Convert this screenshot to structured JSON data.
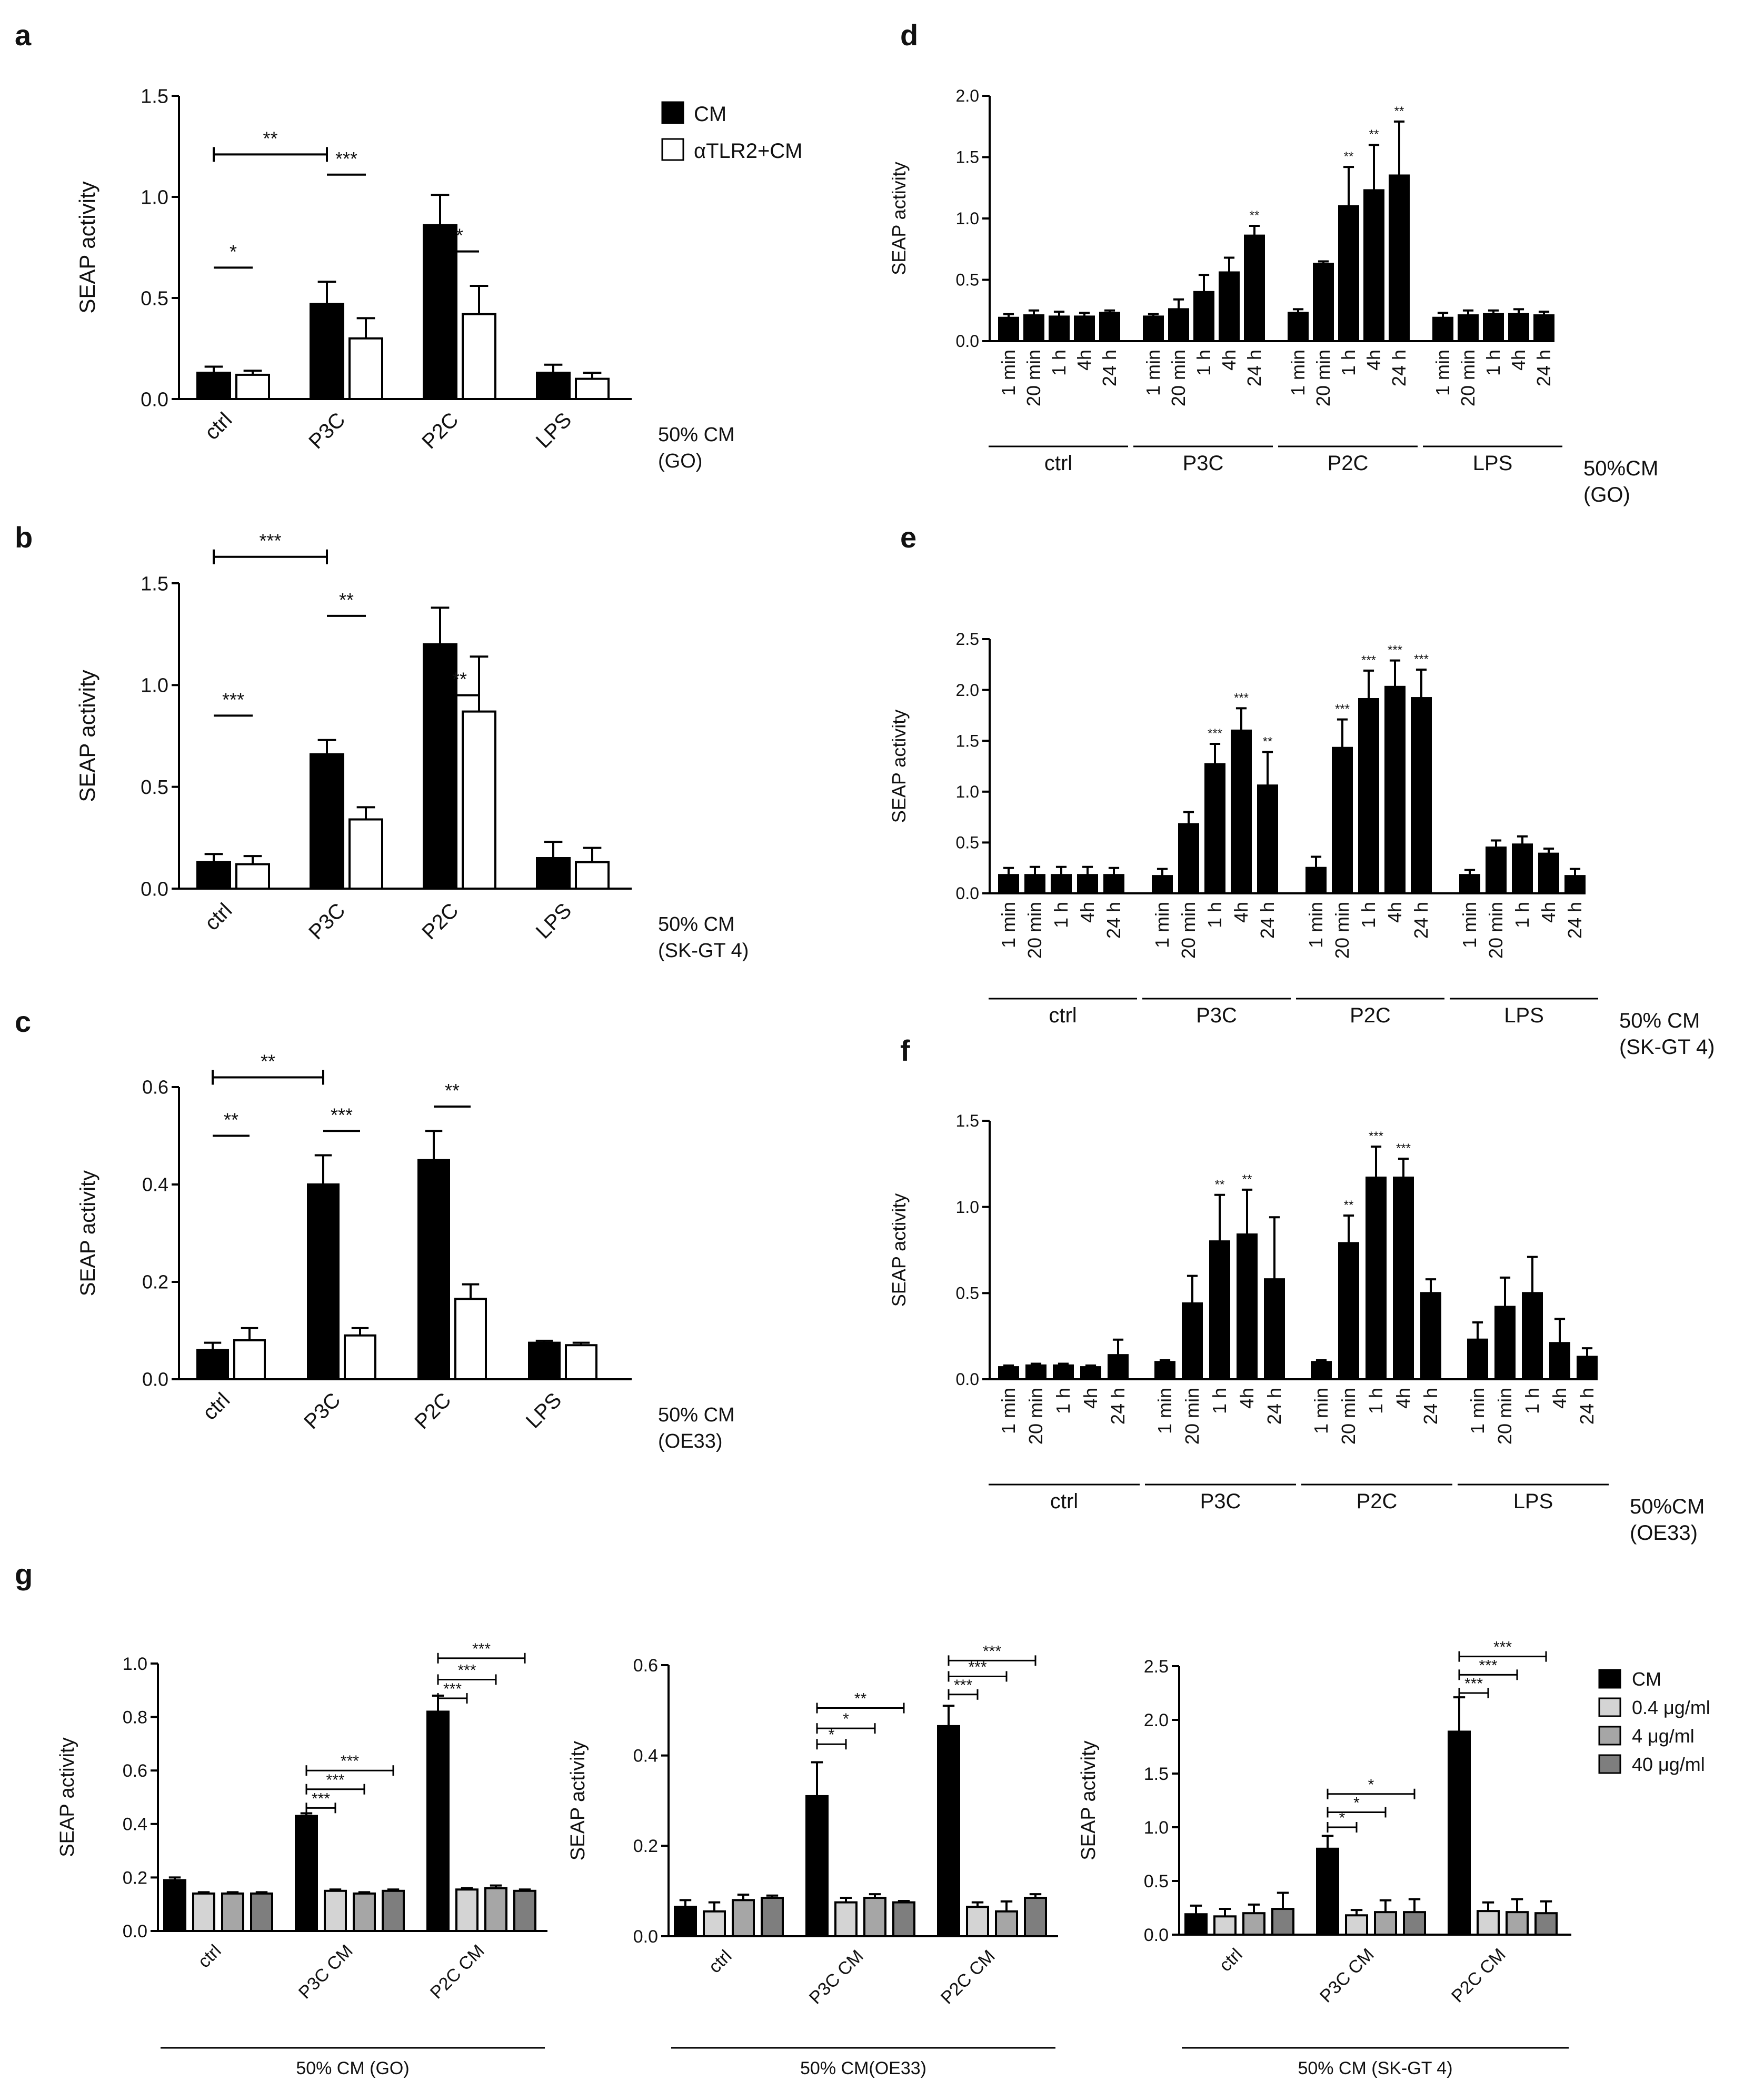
{
  "panel_letters": [
    "a",
    "b",
    "c",
    "d",
    "e",
    "f",
    "g"
  ],
  "legend_top": {
    "items": [
      "CM",
      "αTLR2+CM"
    ]
  },
  "legend_g": {
    "items": [
      "CM",
      "0.4 μg/ml",
      "4 μg/ml",
      "40 μg/ml"
    ]
  },
  "colors": {
    "cm": "#000000",
    "open": "#ffffff",
    "c04": "#d4d4d4",
    "c4": "#a6a6a6",
    "c40": "#7e7e7e",
    "axis": "#000000"
  },
  "chart_data": [
    {
      "id": "a",
      "type": "bar",
      "ylabel": "SEAP activity",
      "ylim": [
        0,
        1.5
      ],
      "yticks": [
        "0.0",
        "0.5",
        "1.0",
        "1.5"
      ],
      "categories": [
        "ctrl",
        "P3C",
        "P2C",
        "LPS"
      ],
      "series": [
        {
          "name": "CM",
          "values": [
            0.13,
            0.47,
            0.86,
            0.13
          ],
          "errors": [
            0.03,
            0.11,
            0.15,
            0.04
          ]
        },
        {
          "name": "αTLR2+CM",
          "values": [
            0.12,
            0.3,
            0.42,
            0.1
          ],
          "errors": [
            0.02,
            0.1,
            0.14,
            0.03
          ]
        }
      ],
      "condition": [
        "50% CM",
        "(GO)"
      ],
      "significance": [
        {
          "from": 0,
          "to": 2,
          "y": 1.21,
          "label": "**"
        },
        {
          "from": 0,
          "to": 1,
          "y": 0.65,
          "label": "*"
        },
        {
          "from": 2,
          "to": 3,
          "y": 1.11,
          "label": "***"
        },
        {
          "from": 4,
          "to": 5,
          "y": 0.73,
          "label": "*"
        }
      ]
    },
    {
      "id": "b",
      "type": "bar",
      "ylabel": "SEAP activity",
      "ylim": [
        0,
        1.5
      ],
      "yticks": [
        "0.0",
        "0.5",
        "1.0",
        "1.5"
      ],
      "categories": [
        "ctrl",
        "P3C",
        "P2C",
        "LPS"
      ],
      "series": [
        {
          "name": "CM",
          "values": [
            0.13,
            0.66,
            1.2,
            0.15
          ],
          "errors": [
            0.04,
            0.07,
            0.18,
            0.08
          ]
        },
        {
          "name": "αTLR2+CM",
          "values": [
            0.12,
            0.34,
            0.87,
            0.13
          ],
          "errors": [
            0.04,
            0.06,
            0.27,
            0.07
          ]
        }
      ],
      "condition": [
        "50% CM",
        "(SK-GT 4)"
      ],
      "significance": [
        {
          "from": 0,
          "to": 2,
          "y": 1.63,
          "label": "***"
        },
        {
          "from": 0,
          "to": 1,
          "y": 0.85,
          "label": "***"
        },
        {
          "from": 2,
          "to": 3,
          "y": 1.34,
          "label": "**"
        },
        {
          "from": 4,
          "to": 5,
          "y": 0.95,
          "label": "**"
        }
      ]
    },
    {
      "id": "c",
      "type": "bar",
      "ylabel": "SEAP activity",
      "ylim": [
        0,
        0.6
      ],
      "yticks": [
        "0.0",
        "0.2",
        "0.4",
        "0.6"
      ],
      "categories": [
        "ctrl",
        "P3C",
        "P2C",
        "LPS"
      ],
      "series": [
        {
          "name": "CM",
          "values": [
            0.06,
            0.4,
            0.45,
            0.075
          ],
          "errors": [
            0.015,
            0.06,
            0.06,
            0.004
          ]
        },
        {
          "name": "αTLR2+CM",
          "values": [
            0.08,
            0.09,
            0.165,
            0.07
          ],
          "errors": [
            0.025,
            0.015,
            0.03,
            0.005
          ]
        }
      ],
      "condition": [
        "50% CM",
        "(OE33)"
      ],
      "significance": [
        {
          "from": 0,
          "to": 2,
          "y": 0.62,
          "label": "**"
        },
        {
          "from": 0,
          "to": 1,
          "y": 0.5,
          "label": "**"
        },
        {
          "from": 2,
          "to": 3,
          "y": 0.51,
          "label": "***"
        },
        {
          "from": 4,
          "to": 5,
          "y": 0.56,
          "label": "**"
        }
      ]
    },
    {
      "id": "d",
      "type": "bar",
      "ylabel": "SEAP activity",
      "ylim": [
        0,
        2.0
      ],
      "yticks": [
        "0.0",
        "0.5",
        "1.0",
        "1.5",
        "2.0"
      ],
      "categories": [
        "1 min",
        "20 min",
        "1 h",
        "4h",
        "24 h"
      ],
      "groups": [
        "ctrl",
        "P3C",
        "P2C",
        "LPS"
      ],
      "values": [
        [
          0.19,
          0.21,
          0.2,
          0.2,
          0.23
        ],
        [
          0.2,
          0.26,
          0.4,
          0.56,
          0.86
        ],
        [
          0.23,
          0.63,
          1.1,
          1.23,
          1.35
        ],
        [
          0.19,
          0.21,
          0.22,
          0.22,
          0.21
        ]
      ],
      "errors": [
        [
          0.03,
          0.04,
          0.04,
          0.03,
          0.02
        ],
        [
          0.02,
          0.08,
          0.14,
          0.12,
          0.08
        ],
        [
          0.03,
          0.02,
          0.32,
          0.37,
          0.44
        ],
        [
          0.04,
          0.04,
          0.03,
          0.04,
          0.03
        ]
      ],
      "stars": [
        [
          "",
          "",
          "",
          "",
          ""
        ],
        [
          "",
          "",
          "",
          "",
          "**"
        ],
        [
          "",
          "",
          "**",
          "**",
          "**"
        ],
        [
          "",
          "",
          "",
          "",
          ""
        ]
      ],
      "condition": [
        "50%CM",
        "(GO)"
      ]
    },
    {
      "id": "e",
      "type": "bar",
      "ylabel": "SEAP activity",
      "ylim": [
        0,
        2.5
      ],
      "yticks": [
        "0.0",
        "0.5",
        "1.0",
        "1.5",
        "2.0",
        "2.5"
      ],
      "categories": [
        "1 min",
        "20 min",
        "1 h",
        "4h",
        "24 h"
      ],
      "groups": [
        "ctrl",
        "P3C",
        "P2C",
        "LPS"
      ],
      "values": [
        [
          0.18,
          0.18,
          0.18,
          0.18,
          0.18
        ],
        [
          0.17,
          0.68,
          1.27,
          1.6,
          1.06
        ],
        [
          0.25,
          1.43,
          1.91,
          2.03,
          1.92
        ],
        [
          0.18,
          0.45,
          0.48,
          0.39,
          0.17
        ]
      ],
      "errors": [
        [
          0.07,
          0.08,
          0.08,
          0.08,
          0.07
        ],
        [
          0.07,
          0.12,
          0.2,
          0.22,
          0.33
        ],
        [
          0.11,
          0.28,
          0.28,
          0.26,
          0.28
        ],
        [
          0.05,
          0.07,
          0.08,
          0.05,
          0.07
        ]
      ],
      "stars": [
        [
          "",
          "",
          "",
          "",
          ""
        ],
        [
          "",
          "",
          "***",
          "***",
          "**"
        ],
        [
          "",
          "***",
          "***",
          "***",
          "***"
        ],
        [
          "",
          "",
          "",
          "",
          ""
        ]
      ],
      "condition": [
        "50% CM",
        "(SK-GT 4)"
      ]
    },
    {
      "id": "f",
      "type": "bar",
      "ylabel": "SEAP activity",
      "ylim": [
        0,
        1.5
      ],
      "yticks": [
        "0.0",
        "0.5",
        "1.0",
        "1.5"
      ],
      "categories": [
        "1 min",
        "20 min",
        "1 h",
        "4h",
        "24 h"
      ],
      "groups": [
        "ctrl",
        "P3C",
        "P2C",
        "LPS"
      ],
      "values": [
        [
          0.07,
          0.08,
          0.08,
          0.07,
          0.14
        ],
        [
          0.1,
          0.44,
          0.8,
          0.84,
          0.58
        ],
        [
          0.1,
          0.79,
          1.17,
          1.17,
          0.5
        ],
        [
          0.23,
          0.42,
          0.5,
          0.21,
          0.13
        ]
      ],
      "errors": [
        [
          0.01,
          0.01,
          0.01,
          0.01,
          0.09
        ],
        [
          0.01,
          0.16,
          0.27,
          0.26,
          0.36
        ],
        [
          0.01,
          0.16,
          0.18,
          0.11,
          0.08
        ],
        [
          0.1,
          0.17,
          0.21,
          0.14,
          0.05
        ]
      ],
      "stars": [
        [
          "",
          "",
          "",
          "",
          ""
        ],
        [
          "",
          "",
          "**",
          "**",
          ""
        ],
        [
          "",
          "**",
          "***",
          "***",
          ""
        ],
        [
          "",
          "",
          "",
          "",
          ""
        ]
      ],
      "condition": [
        "50%CM",
        "(OE33)"
      ]
    },
    {
      "id": "g1",
      "type": "bar",
      "ylabel": "SEAP activity",
      "ylim": [
        0,
        1.0
      ],
      "yticks": [
        "0.0",
        "0.2",
        "0.4",
        "0.6",
        "0.8",
        "1.0"
      ],
      "categories": [
        "ctrl",
        "P3C CM",
        "P2C CM"
      ],
      "series": [
        {
          "name": "CM",
          "values": [
            0.19,
            0.43,
            0.82
          ],
          "errors": [
            0.01,
            0.01,
            0.06
          ]
        },
        {
          "name": "0.4 μg/ml",
          "values": [
            0.14,
            0.15,
            0.155
          ],
          "errors": [
            0.005,
            0.005,
            0.005
          ]
        },
        {
          "name": "4 μg/ml",
          "values": [
            0.14,
            0.14,
            0.16
          ],
          "errors": [
            0.005,
            0.005,
            0.01
          ]
        },
        {
          "name": "40 μg/ml",
          "values": [
            0.14,
            0.15,
            0.15
          ],
          "errors": [
            0.005,
            0.005,
            0.005
          ]
        }
      ],
      "footer": "50% CM (GO)",
      "significance": [
        {
          "group": 1,
          "to": 1,
          "y": 0.46,
          "label": "***"
        },
        {
          "group": 1,
          "to": 2,
          "y": 0.53,
          "label": "***"
        },
        {
          "group": 1,
          "to": 3,
          "y": 0.6,
          "label": "***"
        },
        {
          "group": 2,
          "to": 1,
          "y": 0.87,
          "label": "***"
        },
        {
          "group": 2,
          "to": 2,
          "y": 0.94,
          "label": "***"
        },
        {
          "group": 2,
          "to": 3,
          "y": 1.02,
          "label": "***"
        }
      ]
    },
    {
      "id": "g2",
      "type": "bar",
      "ylabel": "SEAP activity",
      "ylim": [
        0,
        0.6
      ],
      "yticks": [
        "0.0",
        "0.2",
        "0.4",
        "0.6"
      ],
      "categories": [
        "ctrl",
        "P3C CM",
        "P2C CM"
      ],
      "series": [
        {
          "name": "CM",
          "values": [
            0.065,
            0.31,
            0.465
          ],
          "errors": [
            0.015,
            0.075,
            0.045
          ]
        },
        {
          "name": "0.4 μg/ml",
          "values": [
            0.055,
            0.075,
            0.065
          ],
          "errors": [
            0.02,
            0.01,
            0.01
          ]
        },
        {
          "name": "4 μg/ml",
          "values": [
            0.08,
            0.085,
            0.055
          ],
          "errors": [
            0.012,
            0.008,
            0.022
          ]
        },
        {
          "name": "40 μg/ml",
          "values": [
            0.085,
            0.075,
            0.085
          ],
          "errors": [
            0.005,
            0.003,
            0.008
          ]
        }
      ],
      "footer": "50% CM(OE33)",
      "significance": [
        {
          "group": 1,
          "to": 1,
          "y": 0.425,
          "label": "*"
        },
        {
          "group": 1,
          "to": 2,
          "y": 0.46,
          "label": "*"
        },
        {
          "group": 1,
          "to": 3,
          "y": 0.505,
          "label": "**"
        },
        {
          "group": 2,
          "to": 1,
          "y": 0.535,
          "label": "***"
        },
        {
          "group": 2,
          "to": 2,
          "y": 0.575,
          "label": "***"
        },
        {
          "group": 2,
          "to": 3,
          "y": 0.61,
          "label": "***"
        }
      ]
    },
    {
      "id": "g3",
      "type": "bar",
      "ylabel": "SEAP activity",
      "ylim": [
        0,
        2.5
      ],
      "yticks": [
        "0.0",
        "0.5",
        "1.0",
        "1.5",
        "2.0",
        "2.5"
      ],
      "categories": [
        "ctrl",
        "P3C CM",
        "P2C CM"
      ],
      "series": [
        {
          "name": "CM",
          "values": [
            0.19,
            0.8,
            1.89
          ],
          "errors": [
            0.08,
            0.12,
            0.32
          ]
        },
        {
          "name": "0.4 μg/ml",
          "values": [
            0.17,
            0.18,
            0.22
          ],
          "errors": [
            0.07,
            0.05,
            0.08
          ]
        },
        {
          "name": "4 μg/ml",
          "values": [
            0.2,
            0.21,
            0.21
          ],
          "errors": [
            0.08,
            0.11,
            0.12
          ]
        },
        {
          "name": "40 μg/ml",
          "values": [
            0.24,
            0.21,
            0.2
          ],
          "errors": [
            0.15,
            0.12,
            0.11
          ]
        }
      ],
      "footer": "50% CM (SK-GT 4)",
      "significance": [
        {
          "group": 1,
          "to": 1,
          "y": 1.0,
          "label": "*"
        },
        {
          "group": 1,
          "to": 2,
          "y": 1.14,
          "label": "*"
        },
        {
          "group": 1,
          "to": 3,
          "y": 1.31,
          "label": "*"
        },
        {
          "group": 2,
          "to": 1,
          "y": 2.25,
          "label": "***"
        },
        {
          "group": 2,
          "to": 2,
          "y": 2.42,
          "label": "***"
        },
        {
          "group": 2,
          "to": 3,
          "y": 2.59,
          "label": "***"
        }
      ]
    }
  ]
}
